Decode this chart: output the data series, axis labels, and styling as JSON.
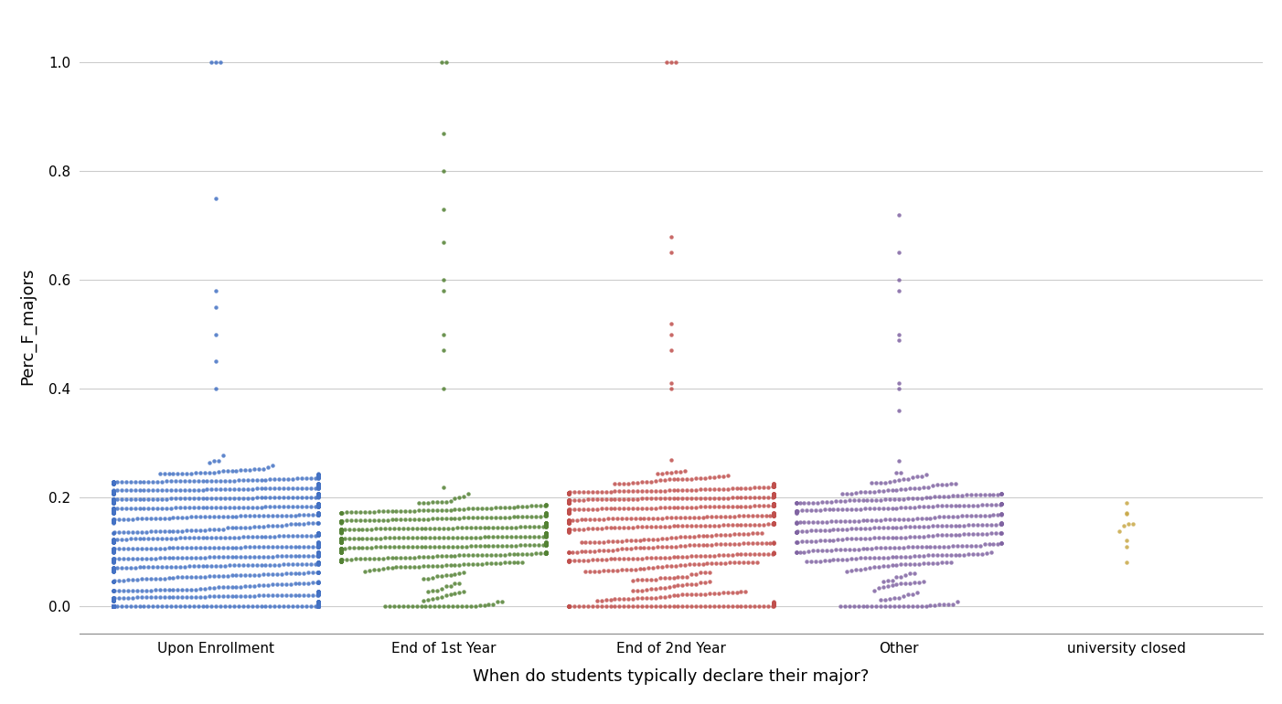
{
  "categories": [
    "Upon Enrollment",
    "End of 1st Year",
    "End of 2nd Year",
    "Other",
    "university closed"
  ],
  "colors": [
    "#4472C4",
    "#548235",
    "#C0504D",
    "#8064A2",
    "#C8A847"
  ],
  "xlabel": "When do students typically declare their major?",
  "ylabel": "Perc_F_majors",
  "title": "",
  "ylim": [
    -0.05,
    1.08
  ],
  "background_color": "#FFFFFF",
  "grid_color": "#CCCCCC",
  "dot_size": 4.5,
  "n_points": [
    2000,
    800,
    900,
    500,
    10
  ],
  "seeds": [
    42,
    43,
    44,
    45,
    46
  ],
  "distributions": {
    "Upon Enrollment": {
      "peaks": [
        0.0,
        0.1,
        0.2
      ],
      "weights": [
        0.25,
        0.35,
        0.4
      ],
      "outliers": [
        0.75,
        1.0,
        1.0,
        1.0,
        0.58,
        0.55,
        0.5,
        0.45,
        0.4
      ]
    },
    "End of 1st Year": {
      "peaks": [
        0.0,
        0.1,
        0.13,
        0.15
      ],
      "weights": [
        0.05,
        0.3,
        0.35,
        0.3
      ],
      "outliers": [
        1.0,
        1.0,
        0.87,
        0.8,
        0.73,
        0.67,
        0.6,
        0.58,
        0.5,
        0.47,
        0.4
      ]
    },
    "End of 2nd Year": {
      "peaks": [
        0.0,
        0.1,
        0.17,
        0.2
      ],
      "weights": [
        0.15,
        0.25,
        0.3,
        0.3
      ],
      "outliers": [
        1.0,
        1.0,
        1.0,
        0.68,
        0.65,
        0.52,
        0.5,
        0.47,
        0.41,
        0.4
      ]
    },
    "Other": {
      "peaks": [
        0.0,
        0.1,
        0.15,
        0.2
      ],
      "weights": [
        0.1,
        0.3,
        0.35,
        0.25
      ],
      "outliers": [
        0.72,
        0.65,
        0.6,
        0.58,
        0.5,
        0.49,
        0.41,
        0.4,
        0.36
      ]
    },
    "university closed": {
      "peaks": [
        0.13,
        0.15
      ],
      "weights": [
        0.5,
        0.5
      ],
      "outliers": [
        0.19,
        0.08
      ]
    }
  }
}
